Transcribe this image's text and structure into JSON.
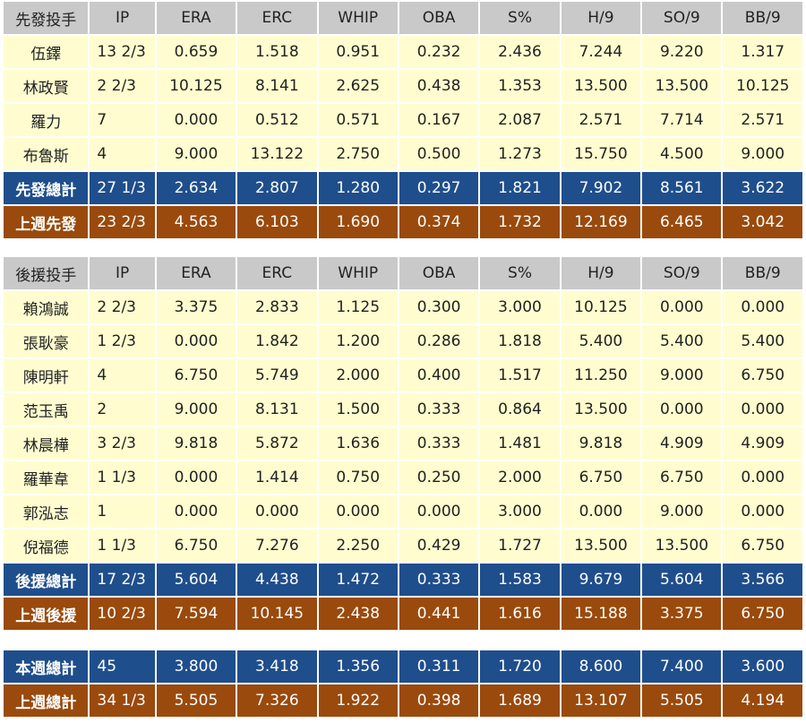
{
  "headers": [
    "IP",
    "ERA",
    "ERC",
    "WHIP",
    "OBA",
    "S%",
    "H/9",
    "SO/9",
    "BB/9"
  ],
  "starters": {
    "title": "先發投手",
    "rows": [
      {
        "name": "伍鐸",
        "v": [
          "13 2/3",
          "0.659",
          "1.518",
          "0.951",
          "0.232",
          "2.436",
          "7.244",
          "9.220",
          "1.317"
        ]
      },
      {
        "name": "林政賢",
        "v": [
          "2 2/3",
          "10.125",
          "8.141",
          "2.625",
          "0.438",
          "1.353",
          "13.500",
          "13.500",
          "10.125"
        ]
      },
      {
        "name": "羅力",
        "v": [
          "7",
          "0.000",
          "0.512",
          "0.571",
          "0.167",
          "2.087",
          "2.571",
          "7.714",
          "2.571"
        ]
      },
      {
        "name": "布魯斯",
        "v": [
          "4",
          "9.000",
          "13.122",
          "2.750",
          "0.500",
          "1.273",
          "15.750",
          "4.500",
          "9.000"
        ]
      }
    ],
    "total": {
      "name": "先發總計",
      "v": [
        "27 1/3",
        "2.634",
        "2.807",
        "1.280",
        "0.297",
        "1.821",
        "7.902",
        "8.561",
        "3.622"
      ]
    },
    "last_week": {
      "name": "上週先發",
      "v": [
        "23 2/3",
        "4.563",
        "6.103",
        "1.690",
        "0.374",
        "1.732",
        "12.169",
        "6.465",
        "3.042"
      ]
    }
  },
  "relievers": {
    "title": "後援投手",
    "rows": [
      {
        "name": "賴鴻誠",
        "v": [
          "2 2/3",
          "3.375",
          "2.833",
          "1.125",
          "0.300",
          "3.000",
          "10.125",
          "0.000",
          "0.000"
        ]
      },
      {
        "name": "張耿豪",
        "v": [
          "1 2/3",
          "0.000",
          "1.842",
          "1.200",
          "0.286",
          "1.818",
          "5.400",
          "5.400",
          "5.400"
        ]
      },
      {
        "name": "陳明軒",
        "v": [
          "4",
          "6.750",
          "5.749",
          "2.000",
          "0.400",
          "1.517",
          "11.250",
          "9.000",
          "6.750"
        ]
      },
      {
        "name": "范玉禹",
        "v": [
          "2",
          "9.000",
          "8.131",
          "1.500",
          "0.333",
          "0.864",
          "13.500",
          "0.000",
          "0.000"
        ]
      },
      {
        "name": "林晨樺",
        "v": [
          "3 2/3",
          "9.818",
          "5.872",
          "1.636",
          "0.333",
          "1.481",
          "9.818",
          "4.909",
          "4.909"
        ]
      },
      {
        "name": "羅華韋",
        "v": [
          "1 1/3",
          "0.000",
          "1.414",
          "0.750",
          "0.250",
          "2.000",
          "6.750",
          "6.750",
          "0.000"
        ]
      },
      {
        "name": "郭泓志",
        "v": [
          "1",
          "0.000",
          "0.000",
          "0.000",
          "0.000",
          "3.000",
          "0.000",
          "9.000",
          "0.000"
        ]
      },
      {
        "name": "倪福德",
        "v": [
          "1 1/3",
          "6.750",
          "7.276",
          "2.250",
          "0.429",
          "1.727",
          "13.500",
          "13.500",
          "6.750"
        ]
      }
    ],
    "total": {
      "name": "後援總計",
      "v": [
        "17 2/3",
        "5.604",
        "4.438",
        "1.472",
        "0.333",
        "1.583",
        "9.679",
        "5.604",
        "3.566"
      ]
    },
    "last_week": {
      "name": "上週後援",
      "v": [
        "10 2/3",
        "7.594",
        "10.145",
        "2.438",
        "0.441",
        "1.616",
        "15.188",
        "3.375",
        "6.750"
      ]
    }
  },
  "summary": {
    "this_week": {
      "name": "本週總計",
      "v": [
        "45",
        "3.800",
        "3.418",
        "1.356",
        "0.311",
        "1.720",
        "8.600",
        "7.400",
        "3.600"
      ]
    },
    "last_week": {
      "name": "上週總計",
      "v": [
        "34 1/3",
        "5.505",
        "7.326",
        "1.922",
        "0.398",
        "1.689",
        "13.107",
        "5.505",
        "4.194"
      ]
    }
  },
  "colors": {
    "header": "#c9c9c9",
    "row": "#fffdd0",
    "total": "#1f4e8c",
    "last_week": "#9a4a0c"
  }
}
